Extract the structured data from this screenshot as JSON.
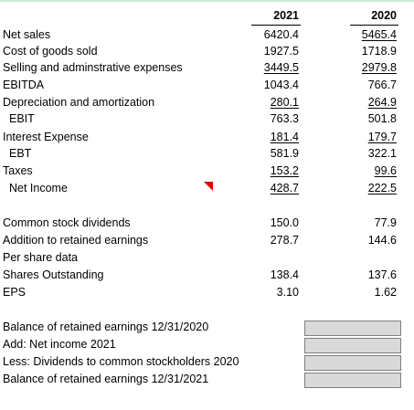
{
  "columns": {
    "year1": "2021",
    "year2": "2020"
  },
  "income_statement": [
    {
      "label": "Net sales",
      "v2021": "6420.4",
      "v2020": "5465.4"
    },
    {
      "label": "Cost of goods sold",
      "v2021": "1927.5",
      "v2020": "1718.9"
    },
    {
      "label": "Selling and adminstrative expenses",
      "v2021": "3449.5",
      "v2020": "2979.8"
    },
    {
      "label": "EBITDA",
      "v2021": "1043.4",
      "v2020": "766.7"
    },
    {
      "label": "Depreciation and amortization",
      "v2021": "280.1",
      "v2020": "264.9"
    },
    {
      "label": "EBIT",
      "v2021": "763.3",
      "v2020": "501.8"
    },
    {
      "label": "Interest Expense",
      "v2021": "181.4",
      "v2020": "179.7"
    },
    {
      "label": "EBT",
      "v2021": "581.9",
      "v2020": "322.1"
    },
    {
      "label": "Taxes",
      "v2021": "153.2",
      "v2020": "99.6"
    },
    {
      "label": "Net Income",
      "v2021": "428.7",
      "v2020": "222.5"
    }
  ],
  "other_data": [
    {
      "label": "Common stock dividends",
      "v2021": "150.0",
      "v2020": "77.9"
    },
    {
      "label": "Addition to retained earnings",
      "v2021": "278.7",
      "v2020": "144.6"
    },
    {
      "label": "Per share data"
    },
    {
      "label": "Shares Outstanding",
      "v2021": "138.4",
      "v2020": "137.6"
    },
    {
      "label": "EPS",
      "v2021": "3.10",
      "v2020": "1.62"
    }
  ],
  "retained_earnings": [
    {
      "label": "Balance of retained earnings 12/31/2020"
    },
    {
      "label": "Add: Net income 2021"
    },
    {
      "label": "Less: Dividends to common stockholders 2020"
    },
    {
      "label": "Balance of retained earnings 12/31/2021"
    }
  ]
}
